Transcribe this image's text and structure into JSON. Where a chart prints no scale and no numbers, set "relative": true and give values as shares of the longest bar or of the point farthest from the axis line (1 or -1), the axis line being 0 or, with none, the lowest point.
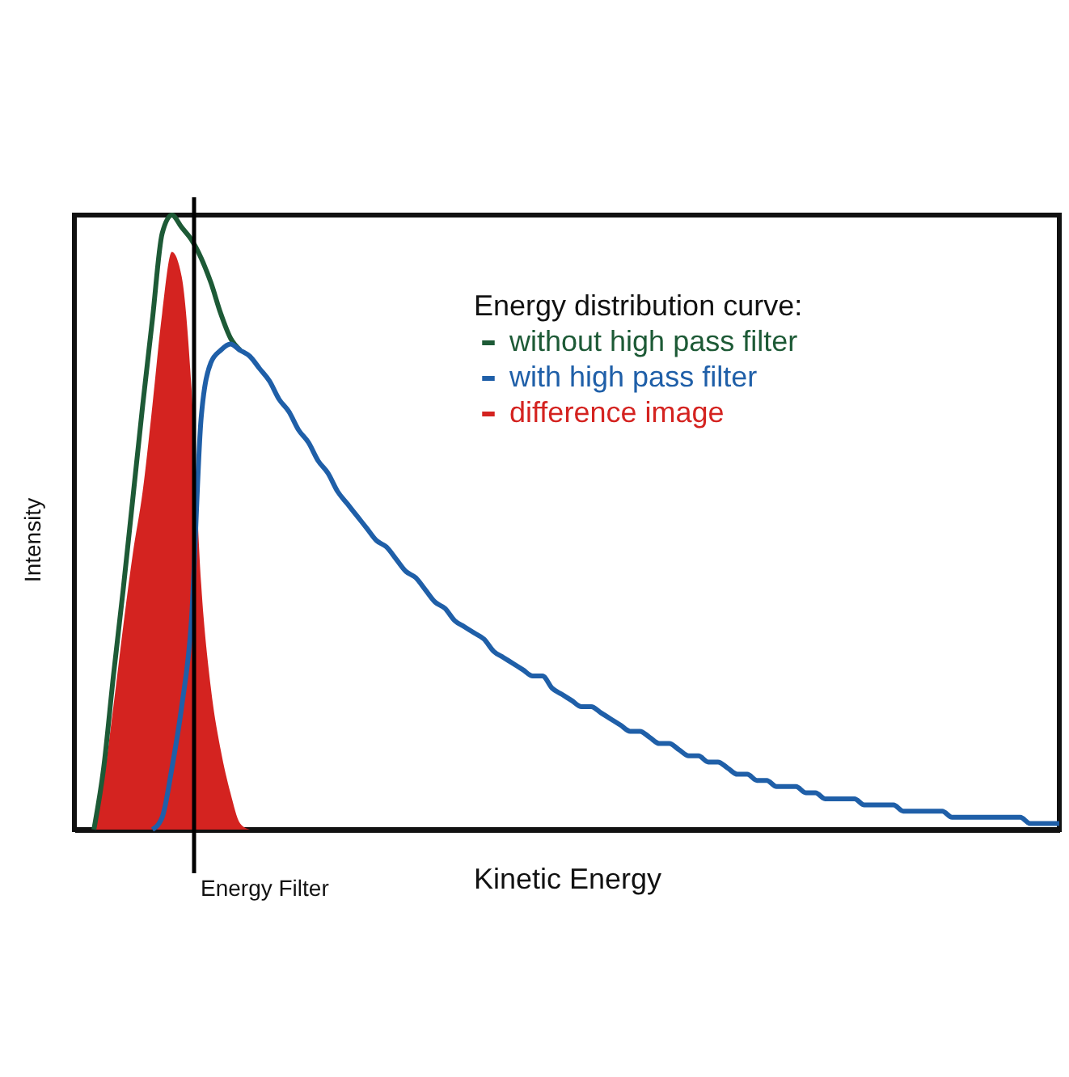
{
  "chart_data": {
    "type": "line",
    "relative": true,
    "xlabel": "Kinetic Energy",
    "ylabel": "Intensity",
    "legend_title": "Energy distribution curve:",
    "legend": "top right",
    "categories": [
      null,
      null,
      null,
      null,
      null,
      null,
      null,
      null,
      null,
      null,
      null,
      null,
      null,
      null,
      null,
      null,
      null,
      null,
      null,
      null,
      null,
      null,
      null,
      null,
      null,
      null,
      null,
      null,
      null,
      null,
      null,
      null,
      null,
      null,
      null,
      null,
      null,
      null,
      null,
      null,
      null,
      null,
      null,
      null,
      null,
      null,
      null,
      null,
      null,
      null,
      null,
      null,
      null,
      null,
      null,
      null,
      null,
      null,
      null,
      null,
      null,
      null,
      null,
      null,
      null,
      null,
      null,
      null,
      null,
      null,
      null,
      null,
      null,
      null,
      null,
      null,
      null,
      null,
      null,
      null,
      null,
      null,
      null,
      null,
      null,
      null,
      null,
      null,
      null,
      null,
      null,
      null,
      null,
      null,
      null,
      null,
      null,
      null,
      null,
      null,
      null,
      null
    ],
    "series": [
      {
        "name": "without high pass filter",
        "color": "#1d5a36",
        "values": [
          null,
          null,
          0,
          0.1,
          0.25,
          0.39,
          0.54,
          0.69,
          0.83,
          0.97,
          1,
          0.98,
          0.96,
          0.93,
          0.89,
          0.84,
          0.8,
          0.78,
          null,
          null,
          null,
          null,
          null,
          null,
          null,
          null,
          null,
          null,
          null,
          null,
          null,
          null,
          null,
          null,
          null,
          null,
          null,
          null,
          null,
          null,
          null,
          null,
          null,
          null,
          null,
          null,
          null,
          null,
          null,
          null,
          null,
          null,
          null,
          null,
          null,
          null,
          null,
          null,
          null,
          null,
          null,
          null,
          null,
          null,
          null,
          null,
          null,
          null,
          null,
          null,
          null,
          null,
          null,
          null,
          null,
          null,
          null,
          null,
          null,
          null,
          null,
          null,
          null,
          null,
          null,
          null,
          null,
          null,
          null,
          null,
          null,
          null,
          null,
          null,
          null,
          null,
          null,
          null,
          null,
          null,
          null,
          null
        ]
      },
      {
        "name": "with high pass filter",
        "color": "#1f5fa8",
        "values": [
          null,
          null,
          null,
          null,
          null,
          null,
          null,
          null,
          0,
          0.02,
          0.1,
          0.2,
          0.34,
          0.67,
          0.76,
          0.78,
          0.79,
          0.78,
          0.77,
          0.75,
          0.73,
          0.7,
          0.68,
          0.65,
          0.63,
          0.6,
          0.58,
          0.55,
          0.53,
          0.51,
          0.49,
          0.47,
          0.46,
          0.44,
          0.42,
          0.41,
          0.39,
          0.37,
          0.36,
          0.34,
          0.33,
          0.32,
          0.31,
          0.29,
          0.28,
          0.27,
          0.26,
          0.25,
          0.25,
          0.23,
          0.22,
          0.21,
          0.2,
          0.2,
          0.19,
          0.18,
          0.17,
          0.16,
          0.16,
          0.15,
          0.14,
          0.14,
          0.13,
          0.12,
          0.12,
          0.11,
          0.11,
          0.1,
          0.09,
          0.09,
          0.08,
          0.08,
          0.07,
          0.07,
          0.07,
          0.06,
          0.06,
          0.05,
          0.05,
          0.05,
          0.05,
          0.04,
          0.04,
          0.04,
          0.04,
          0.03,
          0.03,
          0.03,
          0.03,
          0.03,
          0.02,
          0.02,
          0.02,
          0.02,
          0.02,
          0.02,
          0.02,
          0.02,
          0.01,
          0.01,
          0.01,
          0.01
        ]
      },
      {
        "name": "difference image",
        "color": "#d42320",
        "type": "area",
        "values": [
          null,
          null,
          0,
          0.08,
          0.2,
          0.33,
          0.45,
          0.55,
          0.69,
          0.84,
          0.94,
          0.9,
          0.72,
          0.4,
          0.23,
          0.13,
          0.06,
          0.01,
          0,
          null,
          null,
          null,
          null,
          null,
          null,
          null,
          null,
          null,
          null,
          null,
          null,
          null,
          null,
          null,
          null,
          null,
          null,
          null,
          null,
          null,
          null,
          null,
          null,
          null,
          null,
          null,
          null,
          null,
          null,
          null,
          null,
          null,
          null,
          null,
          null,
          null,
          null,
          null,
          null,
          null,
          null,
          null,
          null,
          null,
          null,
          null,
          null,
          null,
          null,
          null,
          null,
          null,
          null,
          null,
          null,
          null,
          null,
          null,
          null,
          null,
          null,
          null,
          null,
          null,
          null,
          null,
          null,
          null,
          null,
          null,
          null,
          null,
          null,
          null,
          null,
          null,
          null,
          null,
          null,
          null,
          null,
          null
        ]
      }
    ],
    "annotations": [
      "Energy Filter"
    ]
  }
}
